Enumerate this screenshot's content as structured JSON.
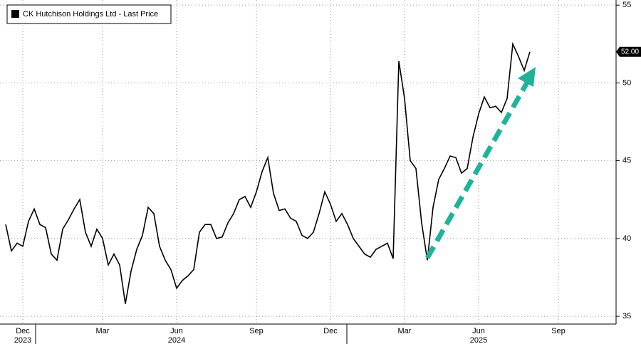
{
  "chart_data": {
    "type": "line",
    "categories": [
      null,
      null,
      null,
      "Dec",
      null,
      null,
      null,
      null,
      null,
      null,
      null,
      null,
      null,
      null,
      null,
      null,
      null,
      "Mar",
      null,
      null,
      null,
      null,
      null,
      null,
      null,
      null,
      null,
      null,
      null,
      null,
      "Jun",
      null,
      null,
      null,
      null,
      null,
      null,
      null,
      null,
      null,
      null,
      null,
      null,
      null,
      "Sep",
      null,
      null,
      null,
      null,
      null,
      null,
      null,
      null,
      null,
      null,
      null,
      null,
      "Dec",
      null,
      null,
      null,
      null,
      null,
      null,
      null,
      null,
      null,
      null,
      null,
      null,
      "Mar",
      null,
      null,
      null,
      null,
      null,
      null,
      null,
      null,
      null,
      null,
      null,
      null,
      "Jun",
      null,
      null,
      null,
      null,
      null,
      null,
      null,
      null,
      null,
      null,
      null,
      null,
      null,
      "Sep",
      null,
      null,
      null,
      null,
      null,
      null,
      null,
      null,
      null
    ],
    "category_years": [
      null,
      null,
      null,
      "2023",
      null,
      null,
      null,
      null,
      null,
      null,
      null,
      null,
      null,
      null,
      null,
      null,
      null,
      null,
      null,
      null,
      null,
      null,
      null,
      null,
      null,
      null,
      null,
      null,
      null,
      null,
      "2024",
      null,
      null,
      null,
      null,
      null,
      null,
      null,
      null,
      null,
      null,
      null,
      null,
      null,
      null,
      null,
      null,
      null,
      null,
      null,
      null,
      null,
      null,
      null,
      null,
      null,
      null,
      null,
      null,
      null,
      null,
      null,
      null,
      null,
      null,
      null,
      null,
      null,
      null,
      null,
      null,
      null,
      null,
      null,
      null,
      null,
      null,
      null,
      null,
      null,
      null,
      null,
      null,
      "2025",
      null,
      null,
      null,
      null,
      null,
      null,
      null,
      null,
      null,
      null,
      null,
      null,
      null,
      null,
      null,
      null,
      null,
      null,
      null,
      null,
      null,
      null,
      null
    ],
    "series": [
      {
        "name": "CK Hutchison Holdings Ltd - Last Price",
        "color": "#000000",
        "values": [
          40.9,
          39.2,
          39.7,
          39.5,
          41.1,
          41.9,
          40.9,
          40.7,
          39.0,
          38.6,
          40.6,
          41.2,
          41.9,
          42.5,
          40.4,
          39.5,
          40.6,
          40.0,
          38.3,
          39.0,
          38.3,
          35.8,
          37.9,
          39.3,
          40.2,
          42.0,
          41.6,
          39.5,
          38.6,
          38.0,
          36.8,
          37.3,
          37.6,
          38.0,
          40.4,
          40.9,
          40.9,
          40.0,
          40.1,
          41.0,
          41.6,
          42.5,
          42.7,
          42.0,
          43.0,
          44.3,
          45.2,
          42.9,
          41.8,
          41.9,
          41.3,
          41.1,
          40.2,
          40.0,
          40.4,
          41.6,
          43.0,
          42.2,
          41.1,
          41.6,
          40.9,
          40.0,
          39.5,
          39.0,
          38.8,
          39.3,
          39.5,
          39.7,
          38.7,
          51.4,
          49.0,
          45.0,
          44.5,
          41.0,
          38.6,
          42.0,
          43.8,
          44.5,
          45.3,
          45.2,
          44.2,
          44.5,
          46.5,
          48.0,
          49.1,
          48.4,
          48.5,
          48.1,
          49.0,
          52.5,
          51.7,
          50.8,
          52.0,
          null,
          null,
          null,
          null,
          null,
          null,
          null,
          null,
          null,
          null,
          null,
          null,
          null,
          null
        ]
      }
    ],
    "last_price": {
      "value": 52,
      "label": "52.00"
    },
    "ylim": [
      34.5,
      55.1
    ],
    "yticks": [
      35,
      40,
      45,
      50,
      55
    ],
    "grid": true,
    "legend": "top-left"
  }
}
